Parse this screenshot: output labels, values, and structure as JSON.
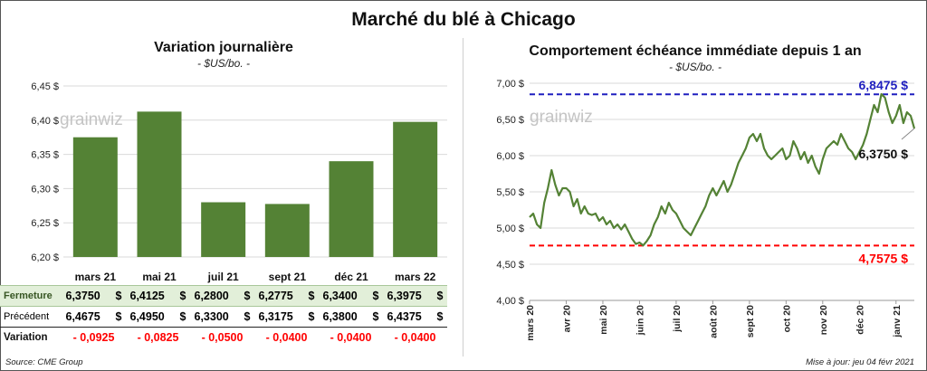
{
  "title": "Marché du blé à Chicago",
  "watermark": "grainwiz",
  "left_panel": {
    "title": "Variation journalière",
    "subtitle": "- $US/bo. -"
  },
  "right_panel": {
    "title": "Comportement échéance immédiate depuis 1 an",
    "subtitle": "- $US/bo. -",
    "high_label": "6,8475 $",
    "low_label": "4,7575 $",
    "last_label": "6,3750 $"
  },
  "table": {
    "row_labels": [
      "Fermeture",
      "Précédent",
      "Variation"
    ],
    "dollar": "$",
    "fermeture": [
      "6,3750",
      "6,4125",
      "6,2800",
      "6,2775",
      "6,3400",
      "6,3975"
    ],
    "precedent": [
      "6,4675",
      "6,4950",
      "6,3300",
      "6,3175",
      "6,3800",
      "6,4375"
    ],
    "variation": [
      "- 0,0925",
      "- 0,0825",
      "- 0,0500",
      "- 0,0400",
      "- 0,0400",
      "- 0,0400"
    ]
  },
  "footer": {
    "source": "Source: CME Group",
    "updated": "Mise à jour: jeu 04 févr 2021"
  },
  "colors": {
    "bar": "#548235",
    "line": "#548235",
    "high": "#1f1fbf",
    "low": "#ff0000",
    "grid": "#d9d9d9"
  },
  "chart_data": [
    {
      "type": "bar",
      "categories": [
        "mars 21",
        "mai 21",
        "juil 21",
        "sept 21",
        "déc 21",
        "mars 22"
      ],
      "values": [
        6.375,
        6.4125,
        6.28,
        6.2775,
        6.34,
        6.3975
      ],
      "ylim": [
        6.2,
        6.45
      ],
      "yticks": [
        6.2,
        6.25,
        6.3,
        6.35,
        6.4,
        6.45
      ],
      "ytick_labels": [
        "6,20 $",
        "6,25 $",
        "6,30 $",
        "6,35 $",
        "6,40 $",
        "6,45 $"
      ],
      "grid": true
    },
    {
      "type": "line",
      "ylim": [
        4.0,
        7.0
      ],
      "yticks": [
        4.0,
        4.5,
        5.0,
        5.5,
        6.0,
        6.5,
        7.0
      ],
      "ytick_labels": [
        "4,00 $",
        "4,50 $",
        "5,00 $",
        "5,50 $",
        "6,00 $",
        "6,50 $",
        "7,00 $"
      ],
      "xticks": [
        "mars 20",
        "avr 20",
        "mai 20",
        "juin 20",
        "juil 20",
        "août 20",
        "sept 20",
        "oct 20",
        "nov 20",
        "déc 20",
        "janv 21"
      ],
      "grid": true,
      "reference_lines": [
        {
          "label": "6,8475 $",
          "value": 6.8475
        },
        {
          "label": "4,7575 $",
          "value": 4.7575
        }
      ],
      "last_value": 6.375,
      "series": [
        {
          "x_months": [
            0,
            0.1,
            0.2,
            0.3,
            0.4,
            0.5,
            0.6,
            0.7,
            0.8,
            0.9,
            1.0,
            1.1,
            1.2,
            1.3,
            1.4,
            1.5,
            1.6,
            1.7,
            1.8,
            1.9,
            2.0,
            2.1,
            2.2,
            2.3,
            2.4,
            2.5,
            2.6,
            2.7,
            2.8,
            2.9,
            3.0,
            3.1,
            3.2,
            3.3,
            3.4,
            3.5,
            3.6,
            3.7,
            3.8,
            3.9,
            4.0,
            4.1,
            4.2,
            4.3,
            4.4,
            4.5,
            4.6,
            4.7,
            4.8,
            4.9,
            5.0,
            5.1,
            5.2,
            5.3,
            5.4,
            5.5,
            5.6,
            5.7,
            5.8,
            5.9,
            6.0,
            6.1,
            6.2,
            6.3,
            6.4,
            6.5,
            6.6,
            6.7,
            6.8,
            6.9,
            7.0,
            7.1,
            7.2,
            7.3,
            7.4,
            7.5,
            7.6,
            7.7,
            7.8,
            7.9,
            8.0,
            8.1,
            8.2,
            8.3,
            8.4,
            8.5,
            8.6,
            8.7,
            8.8,
            8.9,
            9.0,
            9.1,
            9.2,
            9.3,
            9.4,
            9.5,
            9.6,
            9.7,
            9.8,
            9.9,
            10.0,
            10.1,
            10.2,
            10.3,
            10.4,
            10.5
          ],
          "values": [
            5.15,
            5.2,
            5.05,
            5.0,
            5.35,
            5.55,
            5.8,
            5.6,
            5.45,
            5.55,
            5.55,
            5.5,
            5.3,
            5.4,
            5.2,
            5.3,
            5.2,
            5.18,
            5.2,
            5.1,
            5.15,
            5.05,
            5.1,
            5.0,
            5.05,
            4.98,
            5.05,
            4.95,
            4.85,
            4.78,
            4.8,
            4.76,
            4.82,
            4.9,
            5.05,
            5.15,
            5.3,
            5.2,
            5.35,
            5.25,
            5.2,
            5.1,
            5.0,
            4.95,
            4.9,
            5.0,
            5.1,
            5.2,
            5.3,
            5.45,
            5.55,
            5.45,
            5.55,
            5.65,
            5.5,
            5.6,
            5.75,
            5.9,
            6.0,
            6.1,
            6.25,
            6.3,
            6.2,
            6.3,
            6.1,
            6.0,
            5.95,
            6.0,
            6.05,
            6.1,
            5.95,
            6.0,
            6.2,
            6.1,
            5.95,
            6.05,
            5.9,
            6.0,
            5.85,
            5.75,
            5.95,
            6.1,
            6.15,
            6.2,
            6.15,
            6.3,
            6.2,
            6.1,
            6.05,
            5.95,
            6.05,
            6.15,
            6.3,
            6.5,
            6.7,
            6.6,
            6.85,
            6.8,
            6.6,
            6.45,
            6.55,
            6.7,
            6.45,
            6.6,
            6.55,
            6.375
          ]
        }
      ]
    }
  ]
}
